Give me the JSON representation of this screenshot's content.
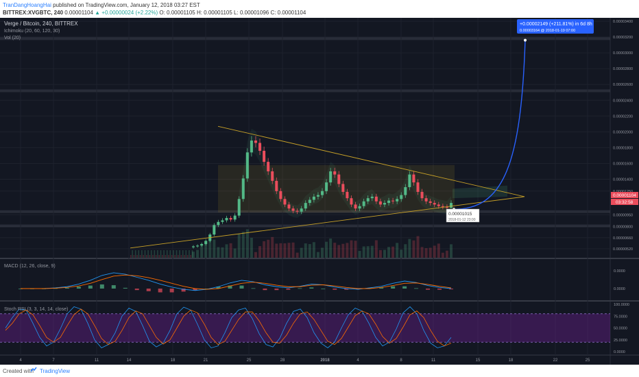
{
  "header": {
    "author": "TranDangHoangHai",
    "published_text": "published on TradingView.com, January 12, 2018 03:27 EST",
    "symbol": "BITTREX:XVGBTC, 240",
    "last_price": "0.00001104",
    "change_text": "▲ +0.00000024 (+2.22%)",
    "ohlc_text": "O: 0.00001105  H: 0.00001105  L: 0.00001096  C: 0.00001104"
  },
  "footer": {
    "created_with": "Created with",
    "brand": "TradingView"
  },
  "colors": {
    "background": "#131722",
    "up": "#53b987",
    "down": "#eb4d5c",
    "macd_line": "#2196f3",
    "signal_line": "#ff6d00",
    "rsi_k": "#2196f3",
    "rsi_d": "#ff6d00",
    "rsi_band": "#7b1fa2",
    "triangle": "#c9a227",
    "projection": "#2962ff"
  },
  "chart_data": [
    {
      "type": "candlestick",
      "title": "Verge / Bitcoin, 240, BITTREX",
      "indicators": [
        "Ichimoku (20, 60, 120, 30)",
        "Vol (20)"
      ],
      "y_ticks": [
        "0.00003400",
        "0.00003200",
        "0.00003000",
        "0.00002800",
        "0.00002600",
        "0.00002400",
        "0.00002200",
        "0.00002000",
        "0.00001800",
        "0.00001600",
        "0.00001400",
        "0.00001250",
        "0.00000950",
        "0.00000800",
        "0.00000660",
        "0.00000520"
      ],
      "x_ticks": [
        "4",
        "7",
        "11",
        "14",
        "18",
        "21",
        "25",
        "28",
        "2018",
        "4",
        "8",
        "11",
        "15",
        "18",
        "22",
        "25"
      ],
      "close_series": [
        5.5e-06,
        5.6e-06,
        5.8e-06,
        6.2e-06,
        7e-06,
        8.2e-06,
        8.6e-06,
        8.8e-06,
        9.1e-06,
        8.9e-06,
        9.4e-06,
        1.15e-05,
        1.41e-05,
        1.74e-05,
        1.89e-05,
        1.86e-05,
        1.76e-05,
        1.62e-05,
        1.5e-05,
        1.38e-05,
        1.25e-05,
        1.15e-05,
        1.08e-05,
        1.03e-05,
        1e-05,
        9.9e-06,
        1.03e-05,
        1.1e-05,
        1.14e-05,
        1.18e-05,
        1.2e-05,
        1.25e-05,
        1.36e-05,
        1.5e-05,
        1.46e-05,
        1.34e-05,
        1.24e-05,
        1.16e-05,
        1.08e-05,
        1.03e-05,
        1.06e-05,
        1.12e-05,
        1.16e-05,
        1.18e-05,
        1.12e-05,
        1.08e-05,
        1.1e-05,
        1.13e-05,
        1.12e-05,
        1.15e-05,
        1.2e-05,
        1.3e-05,
        1.46e-05,
        1.36e-05,
        1.24e-05,
        1.16e-05,
        1.12e-05,
        1.1e-05,
        1.08e-05,
        1.06e-05,
        1.05e-05,
        1.04e-05,
        1.1e-05
      ],
      "last_price_label": "0.00001104",
      "countdown_label": "03:32:58",
      "price_marker": "0.00001015",
      "price_marker_date": "2018-01-12 23:00",
      "projection_label": "+0.00002149 (+211.81%) in 6d 8h",
      "projection_sub": "0.00003164  @ 2018-01-19 07:00"
    },
    {
      "type": "line",
      "title": "MACD (12, 26, close, 9)",
      "y_ticks": [
        "0.0000",
        "0.0000"
      ],
      "macd": [
        0,
        0,
        0,
        0.02,
        0.05,
        0.12,
        0.22,
        0.35,
        0.42,
        0.38,
        0.3,
        0.22,
        0.12,
        0.04,
        -0.02,
        -0.05,
        -0.02,
        0.05,
        0.15,
        0.22,
        0.18,
        0.1,
        0.05,
        0.02,
        0.06,
        0.12,
        0.1,
        0.04,
        0.0,
        -0.02,
        0.02,
        0.06,
        0.14,
        0.2,
        0.16,
        0.08,
        0.03,
        0.0
      ],
      "signal": [
        0,
        0,
        0,
        0.01,
        0.03,
        0.07,
        0.14,
        0.24,
        0.33,
        0.36,
        0.34,
        0.29,
        0.22,
        0.14,
        0.06,
        0.0,
        -0.02,
        0.0,
        0.07,
        0.14,
        0.17,
        0.14,
        0.09,
        0.05,
        0.05,
        0.09,
        0.1,
        0.07,
        0.03,
        0.0,
        0.0,
        0.03,
        0.08,
        0.14,
        0.15,
        0.11,
        0.06,
        0.02
      ]
    },
    {
      "type": "line",
      "title": "Stoch RSI (3, 3, 14, 14, close)",
      "y_ticks": [
        "100.0000",
        "75.0000",
        "50.0000",
        "25.0000",
        "0.0000"
      ],
      "k": [
        50,
        72,
        90,
        88,
        60,
        30,
        12,
        20,
        48,
        80,
        95,
        90,
        60,
        25,
        8,
        15,
        40,
        75,
        92,
        85,
        55,
        22,
        10,
        18,
        45,
        80,
        94,
        88,
        58,
        25,
        8,
        12,
        40,
        72,
        88,
        92,
        70,
        38,
        15,
        10,
        28,
        60,
        85,
        90,
        72,
        40,
        18,
        8,
        20,
        50,
        78,
        92,
        86,
        60,
        30,
        12,
        20,
        48,
        82,
        95,
        80,
        45,
        18,
        8,
        12,
        30
      ],
      "d": [
        45,
        60,
        80,
        88,
        78,
        55,
        30,
        20,
        30,
        55,
        78,
        90,
        80,
        55,
        28,
        15,
        22,
        45,
        72,
        86,
        80,
        55,
        30,
        16,
        25,
        50,
        75,
        88,
        82,
        58,
        30,
        15,
        22,
        45,
        68,
        84,
        84,
        65,
        40,
        20,
        18,
        35,
        60,
        80,
        84,
        68,
        45,
        22,
        15,
        28,
        52,
        76,
        86,
        80,
        58,
        32,
        18,
        28,
        52,
        78,
        86,
        72,
        45,
        22,
        12,
        18
      ]
    }
  ]
}
